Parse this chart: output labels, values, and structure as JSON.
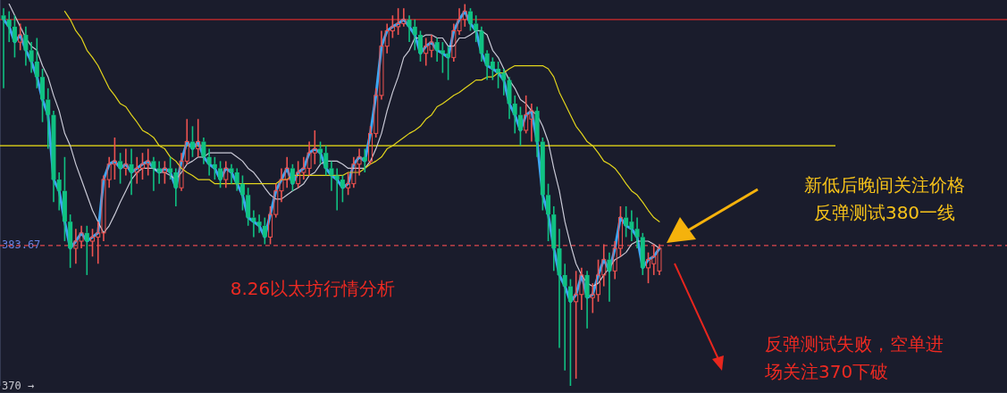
{
  "chart_data": {
    "type": "candlestick",
    "categories": [
      null,
      null,
      null,
      null,
      null,
      null,
      null,
      null,
      null,
      null,
      null,
      null,
      null,
      null,
      null,
      null,
      null,
      null,
      null,
      null,
      null,
      null,
      null,
      null,
      null,
      null,
      null,
      null,
      null,
      null,
      null,
      null,
      null,
      null,
      null,
      null,
      null,
      null,
      null,
      null,
      null,
      null,
      null,
      null,
      null,
      null,
      null,
      null,
      null,
      null,
      null,
      null,
      null,
      null,
      null,
      null,
      null,
      null,
      null,
      null,
      null,
      null,
      null,
      null,
      null,
      null,
      null,
      null,
      null,
      null,
      null,
      null,
      null,
      null,
      null,
      null,
      null,
      null,
      null,
      null,
      null,
      null,
      null,
      null,
      null,
      null,
      null,
      null,
      null,
      null,
      null,
      null,
      null,
      null,
      null,
      null,
      null,
      null,
      null,
      null,
      null,
      null,
      null,
      null,
      null,
      null,
      null,
      null,
      null,
      null,
      null,
      null,
      null,
      null,
      null,
      null,
      null,
      null,
      null
    ],
    "ylim": [
      370,
      407.6
    ],
    "yticks": [
      {
        "value": 370,
        "label": "370 →"
      },
      383.67
    ],
    "ohlc": [
      [
        406.1,
        406.8,
        399.0,
        405.7
      ],
      [
        405.7,
        406.5,
        403.5,
        405.0
      ],
      [
        405.0,
        406.1,
        402.0,
        403.5
      ],
      [
        403.5,
        405.3,
        402.7,
        404.2
      ],
      [
        404.2,
        405.0,
        401.2,
        402.7
      ],
      [
        402.7,
        403.5,
        400.5,
        401.6
      ],
      [
        401.6,
        403.9,
        399.0,
        400.1
      ],
      [
        400.1,
        400.9,
        395.7,
        397.9
      ],
      [
        397.9,
        399.0,
        393.1,
        396.4
      ],
      [
        396.4,
        396.8,
        387.9,
        390.1
      ],
      [
        390.1,
        390.8,
        387.1,
        389.0
      ],
      [
        389.0,
        392.3,
        384.1,
        386.0
      ],
      [
        386.0,
        386.7,
        381.5,
        383.4
      ],
      [
        383.4,
        385.3,
        381.9,
        384.1
      ],
      [
        384.1,
        385.6,
        383.4,
        384.9
      ],
      [
        384.9,
        385.6,
        380.8,
        384.1
      ],
      [
        384.1,
        385.3,
        382.6,
        384.5
      ],
      [
        384.5,
        386.0,
        381.9,
        384.9
      ],
      [
        384.9,
        390.5,
        384.1,
        390.1
      ],
      [
        390.1,
        392.3,
        389.3,
        391.6
      ],
      [
        391.6,
        394.2,
        390.1,
        391.9
      ],
      [
        391.9,
        392.7,
        389.7,
        391.2
      ],
      [
        391.2,
        393.1,
        390.5,
        391.6
      ],
      [
        391.6,
        393.1,
        388.6,
        390.8
      ],
      [
        390.8,
        392.3,
        389.7,
        391.2
      ],
      [
        391.2,
        392.7,
        390.1,
        391.6
      ],
      [
        391.6,
        393.1,
        390.5,
        391.9
      ],
      [
        391.9,
        392.3,
        389.0,
        391.2
      ],
      [
        391.2,
        391.9,
        389.7,
        390.8
      ],
      [
        390.8,
        391.9,
        389.7,
        391.2
      ],
      [
        391.2,
        392.3,
        390.1,
        390.8
      ],
      [
        390.8,
        391.2,
        387.5,
        389.3
      ],
      [
        389.3,
        392.7,
        389.0,
        391.9
      ],
      [
        391.9,
        396.0,
        391.6,
        393.8
      ],
      [
        393.8,
        395.3,
        392.3,
        393.1
      ],
      [
        393.1,
        396.0,
        392.3,
        393.8
      ],
      [
        393.8,
        394.2,
        391.6,
        392.3
      ],
      [
        392.3,
        393.1,
        390.5,
        391.6
      ],
      [
        391.6,
        392.3,
        390.1,
        391.2
      ],
      [
        391.2,
        391.9,
        389.3,
        390.1
      ],
      [
        390.1,
        391.9,
        389.3,
        391.2
      ],
      [
        391.2,
        391.6,
        389.7,
        390.8
      ],
      [
        390.8,
        391.2,
        389.0,
        389.7
      ],
      [
        389.7,
        390.5,
        387.1,
        388.6
      ],
      [
        388.6,
        389.3,
        385.6,
        386.4
      ],
      [
        386.4,
        387.1,
        384.5,
        386.0
      ],
      [
        386.0,
        386.7,
        384.9,
        385.6
      ],
      [
        385.6,
        386.4,
        383.8,
        384.5
      ],
      [
        384.5,
        387.5,
        383.8,
        386.7
      ],
      [
        386.7,
        389.7,
        386.4,
        389.0
      ],
      [
        389.0,
        391.2,
        387.9,
        390.1
      ],
      [
        390.1,
        392.3,
        389.3,
        391.2
      ],
      [
        391.2,
        391.6,
        389.0,
        389.7
      ],
      [
        389.7,
        391.9,
        389.3,
        390.8
      ],
      [
        390.8,
        392.3,
        390.1,
        391.2
      ],
      [
        391.2,
        393.8,
        390.5,
        392.7
      ],
      [
        392.7,
        394.9,
        391.6,
        393.1
      ],
      [
        393.1,
        393.8,
        391.6,
        392.7
      ],
      [
        392.7,
        393.4,
        390.5,
        391.2
      ],
      [
        391.2,
        391.9,
        389.0,
        390.5
      ],
      [
        390.5,
        391.2,
        387.1,
        390.1
      ],
      [
        390.1,
        390.5,
        387.9,
        389.3
      ],
      [
        389.3,
        390.8,
        388.6,
        389.7
      ],
      [
        389.7,
        392.3,
        389.3,
        391.6
      ],
      [
        391.6,
        393.1,
        390.5,
        392.3
      ],
      [
        392.3,
        393.1,
        390.8,
        391.9
      ],
      [
        391.9,
        395.3,
        391.6,
        394.6
      ],
      [
        394.6,
        399.0,
        394.2,
        398.3
      ],
      [
        398.3,
        404.6,
        397.9,
        403.1
      ],
      [
        403.1,
        405.3,
        402.4,
        404.6
      ],
      [
        404.6,
        406.1,
        403.9,
        405.0
      ],
      [
        405.0,
        406.8,
        404.2,
        405.3
      ],
      [
        405.3,
        406.8,
        405.0,
        405.7
      ],
      [
        405.7,
        406.1,
        403.5,
        405.0
      ],
      [
        405.0,
        405.7,
        402.7,
        404.2
      ],
      [
        404.2,
        404.6,
        401.6,
        402.4
      ],
      [
        402.4,
        403.9,
        401.2,
        403.1
      ],
      [
        402.7,
        404.2,
        402.0,
        403.5
      ],
      [
        403.5,
        403.9,
        401.6,
        402.7
      ],
      [
        402.7,
        403.5,
        400.5,
        402.4
      ],
      [
        402.4,
        403.1,
        399.8,
        402.0
      ],
      [
        402.0,
        405.3,
        401.6,
        404.6
      ],
      [
        404.6,
        406.8,
        404.2,
        405.7
      ],
      [
        405.7,
        407.2,
        405.0,
        406.5
      ],
      [
        406.5,
        406.8,
        404.6,
        405.3
      ],
      [
        405.3,
        406.1,
        403.5,
        404.6
      ],
      [
        404.6,
        405.0,
        401.6,
        402.4
      ],
      [
        402.4,
        402.7,
        399.8,
        401.2
      ],
      [
        401.6,
        402.0,
        399.8,
        400.9
      ],
      [
        400.9,
        401.6,
        399.0,
        400.5
      ],
      [
        400.5,
        400.9,
        398.3,
        399.8
      ],
      [
        399.8,
        400.1,
        396.0,
        397.5
      ],
      [
        397.5,
        398.3,
        394.6,
        396.4
      ],
      [
        396.4,
        397.2,
        393.4,
        394.9
      ],
      [
        394.9,
        398.3,
        394.6,
        396.4
      ],
      [
        396.0,
        397.5,
        393.8,
        396.8
      ],
      [
        396.8,
        397.2,
        392.3,
        393.8
      ],
      [
        393.8,
        394.2,
        387.1,
        388.6
      ],
      [
        388.6,
        389.7,
        384.1,
        386.7
      ],
      [
        386.7,
        387.5,
        381.2,
        383.4
      ],
      [
        383.4,
        385.3,
        373.7,
        380.8
      ],
      [
        380.8,
        381.9,
        371.5,
        379.7
      ],
      [
        379.7,
        380.4,
        370.0,
        378.2
      ],
      [
        378.2,
        381.2,
        370.7,
        378.9
      ],
      [
        378.9,
        381.5,
        377.4,
        380.8
      ],
      [
        380.8,
        381.2,
        375.6,
        378.6
      ],
      [
        378.6,
        380.0,
        377.1,
        378.9
      ],
      [
        378.9,
        382.3,
        378.2,
        380.8
      ],
      [
        380.8,
        383.8,
        379.7,
        382.3
      ],
      [
        382.3,
        383.0,
        378.2,
        381.2
      ],
      [
        381.2,
        384.1,
        380.4,
        383.4
      ],
      [
        383.4,
        387.5,
        382.6,
        386.4
      ],
      [
        386.4,
        387.5,
        384.5,
        385.6
      ],
      [
        386.0,
        387.1,
        384.1,
        385.3
      ],
      [
        385.3,
        386.4,
        383.4,
        384.5
      ],
      [
        384.5,
        384.9,
        380.8,
        381.5
      ],
      [
        381.5,
        383.0,
        380.0,
        382.3
      ],
      [
        381.9,
        383.8,
        380.8,
        382.6
      ],
      [
        381.2,
        383.8,
        380.8,
        383.4
      ]
    ],
    "series": [
      {
        "type": "line",
        "color": "#3ea6f2",
        "values": [
          405.7,
          405.0,
          403.5,
          404.2,
          402.7,
          401.6,
          400.1,
          397.9,
          396.4,
          390.1,
          389.0,
          386.0,
          383.4,
          384.1,
          384.9,
          384.1,
          384.5,
          384.9,
          390.1,
          391.6,
          391.9,
          391.2,
          391.6,
          390.8,
          391.2,
          391.6,
          391.9,
          391.2,
          390.8,
          391.2,
          390.8,
          389.3,
          391.9,
          393.8,
          393.1,
          393.8,
          392.3,
          391.6,
          391.2,
          390.1,
          391.2,
          390.8,
          389.7,
          388.6,
          386.4,
          386.0,
          385.6,
          384.5,
          386.7,
          389.0,
          390.1,
          391.2,
          389.7,
          390.8,
          391.2,
          392.7,
          393.1,
          392.7,
          391.2,
          390.5,
          390.1,
          389.3,
          389.7,
          391.6,
          392.3,
          391.9,
          394.6,
          398.3,
          403.1,
          404.6,
          405.0,
          405.3,
          405.7,
          405.0,
          404.2,
          402.4,
          403.1,
          403.5,
          402.7,
          402.4,
          402.0,
          404.6,
          405.7,
          406.5,
          405.3,
          404.6,
          402.4,
          401.2,
          400.9,
          400.5,
          399.8,
          397.5,
          396.4,
          394.9,
          396.4,
          396.8,
          393.8,
          388.6,
          386.7,
          383.4,
          380.8,
          379.7,
          378.2,
          378.9,
          380.8,
          378.6,
          378.9,
          380.8,
          382.3,
          381.2,
          383.4,
          386.4,
          385.6,
          385.3,
          384.5,
          381.5,
          382.3,
          382.6,
          383.4
        ]
      },
      {
        "type": "line",
        "color": "#c9c9d6",
        "values": [
          null,
          407.2,
          406.1,
          405.0,
          403.9,
          403.1,
          402.7,
          401.2,
          400.1,
          398.3,
          396.8,
          394.6,
          393.4,
          391.6,
          390.1,
          388.6,
          387.1,
          386.0,
          384.9,
          385.6,
          386.7,
          387.9,
          389.0,
          390.1,
          390.8,
          391.2,
          391.2,
          391.2,
          390.8,
          390.8,
          390.5,
          390.1,
          390.8,
          391.6,
          391.9,
          392.3,
          392.3,
          392.7,
          392.7,
          392.7,
          392.7,
          392.7,
          392.3,
          391.9,
          391.2,
          390.8,
          390.1,
          389.3,
          388.6,
          388.2,
          388.2,
          388.6,
          389.0,
          389.3,
          389.7,
          390.5,
          390.8,
          391.6,
          391.9,
          391.9,
          391.9,
          391.6,
          391.2,
          391.2,
          391.2,
          391.2,
          391.9,
          393.1,
          394.6,
          396.8,
          398.6,
          400.1,
          402.0,
          402.7,
          403.9,
          403.9,
          404.2,
          404.2,
          403.9,
          403.9,
          403.1,
          403.1,
          403.9,
          403.9,
          404.2,
          404.6,
          404.6,
          404.2,
          402.7,
          402.0,
          400.9,
          399.8,
          399.0,
          397.9,
          397.5,
          396.8,
          396.4,
          395.3,
          393.8,
          391.2,
          389.0,
          386.0,
          383.8,
          381.9,
          380.8,
          380.0,
          379.7,
          380.0,
          380.8,
          381.5,
          382.3,
          382.6,
          383.0,
          383.8,
          384.1,
          384.1,
          384.1,
          383.8,
          383.4
        ]
      },
      {
        "type": "line",
        "color": "#e3d51c",
        "values": [
          null,
          null,
          null,
          null,
          null,
          null,
          null,
          null,
          null,
          null,
          null,
          406.5,
          405.7,
          404.6,
          403.9,
          402.7,
          402.0,
          401.2,
          400.1,
          399.0,
          398.3,
          397.5,
          397.2,
          396.4,
          395.7,
          394.9,
          394.6,
          394.2,
          393.4,
          393.1,
          392.3,
          391.9,
          391.2,
          390.8,
          390.5,
          390.1,
          390.1,
          390.1,
          389.7,
          389.7,
          389.7,
          389.7,
          389.7,
          389.7,
          389.7,
          389.7,
          389.7,
          389.7,
          389.7,
          389.7,
          390.1,
          390.1,
          390.5,
          390.5,
          390.5,
          390.5,
          390.5,
          390.5,
          390.5,
          390.5,
          390.5,
          390.5,
          390.8,
          390.8,
          390.8,
          391.2,
          391.6,
          391.9,
          392.3,
          393.1,
          393.4,
          393.8,
          394.2,
          394.6,
          394.9,
          395.3,
          396.0,
          396.4,
          397.2,
          397.5,
          397.9,
          398.3,
          398.6,
          399.0,
          399.4,
          399.8,
          399.8,
          400.1,
          400.1,
          400.5,
          400.5,
          400.9,
          401.2,
          401.2,
          401.2,
          401.2,
          401.2,
          401.2,
          400.9,
          400.1,
          398.6,
          397.5,
          396.4,
          395.3,
          394.6,
          393.8,
          393.4,
          392.7,
          391.9,
          391.6,
          391.2,
          390.5,
          389.7,
          389.0,
          388.6,
          387.9,
          387.1,
          386.4,
          386.0
        ]
      }
    ],
    "ref_lines": [
      {
        "axis": "y",
        "value": 405.7,
        "color": "#d42a2a"
      },
      {
        "axis": "y",
        "value": 393.4,
        "color": "#f2e415"
      },
      {
        "axis": "y",
        "value": 383.67,
        "color": "#e0484d",
        "line_style": "dashed"
      }
    ],
    "annotations": [
      "8.26以太坊行情分析",
      "新低后晚间关注价格",
      "反弹测试380一线",
      "反弹测试失败，空单进",
      "场关注370下破"
    ]
  }
}
